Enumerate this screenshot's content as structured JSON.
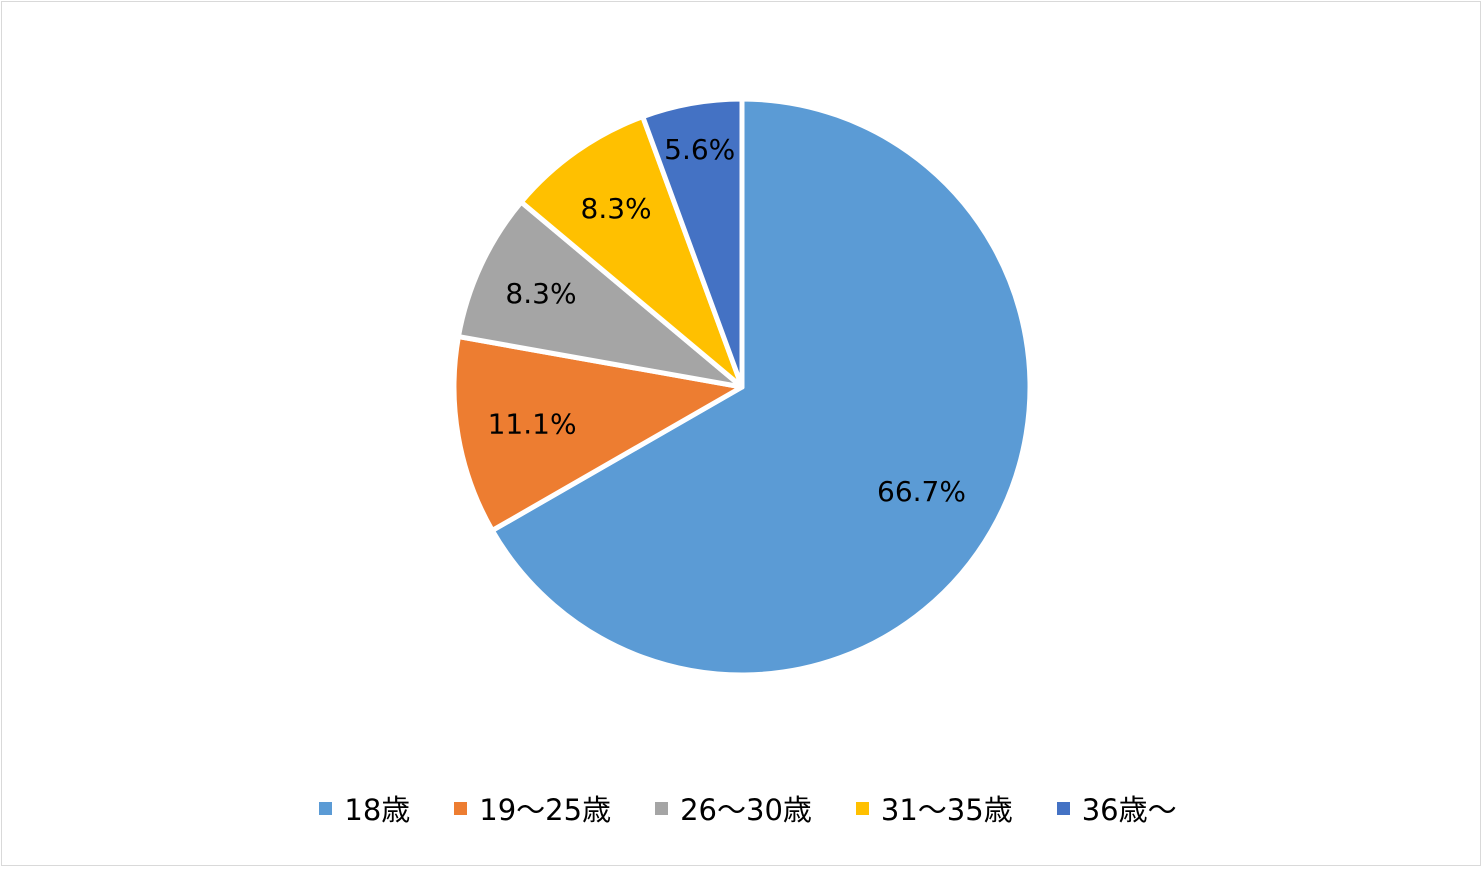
{
  "chart_data": {
    "type": "pie",
    "categories": [
      "18歳",
      "19〜25歳",
      "26〜30歳",
      "31〜35歳",
      "36歳〜"
    ],
    "values": [
      66.7,
      11.1,
      8.3,
      8.3,
      5.6
    ],
    "data_labels": [
      "66.7%",
      "11.1%",
      "8.3%",
      "8.3%",
      "5.6%"
    ],
    "colors": [
      "#5B9BD5",
      "#ED7D31",
      "#A5A5A5",
      "#FFC000",
      "#4472C4"
    ],
    "start_angle": "12 o'clock",
    "direction": "clockwise",
    "legend_position": "bottom",
    "title": ""
  },
  "legend": {
    "items": [
      {
        "label": "18歳",
        "color": "#5B9BD5"
      },
      {
        "label": "19〜25歳",
        "color": "#ED7D31"
      },
      {
        "label": "26〜30歳",
        "color": "#A5A5A5"
      },
      {
        "label": "31〜35歳",
        "color": "#FFC000"
      },
      {
        "label": "36歳〜",
        "color": "#4472C4"
      }
    ]
  }
}
